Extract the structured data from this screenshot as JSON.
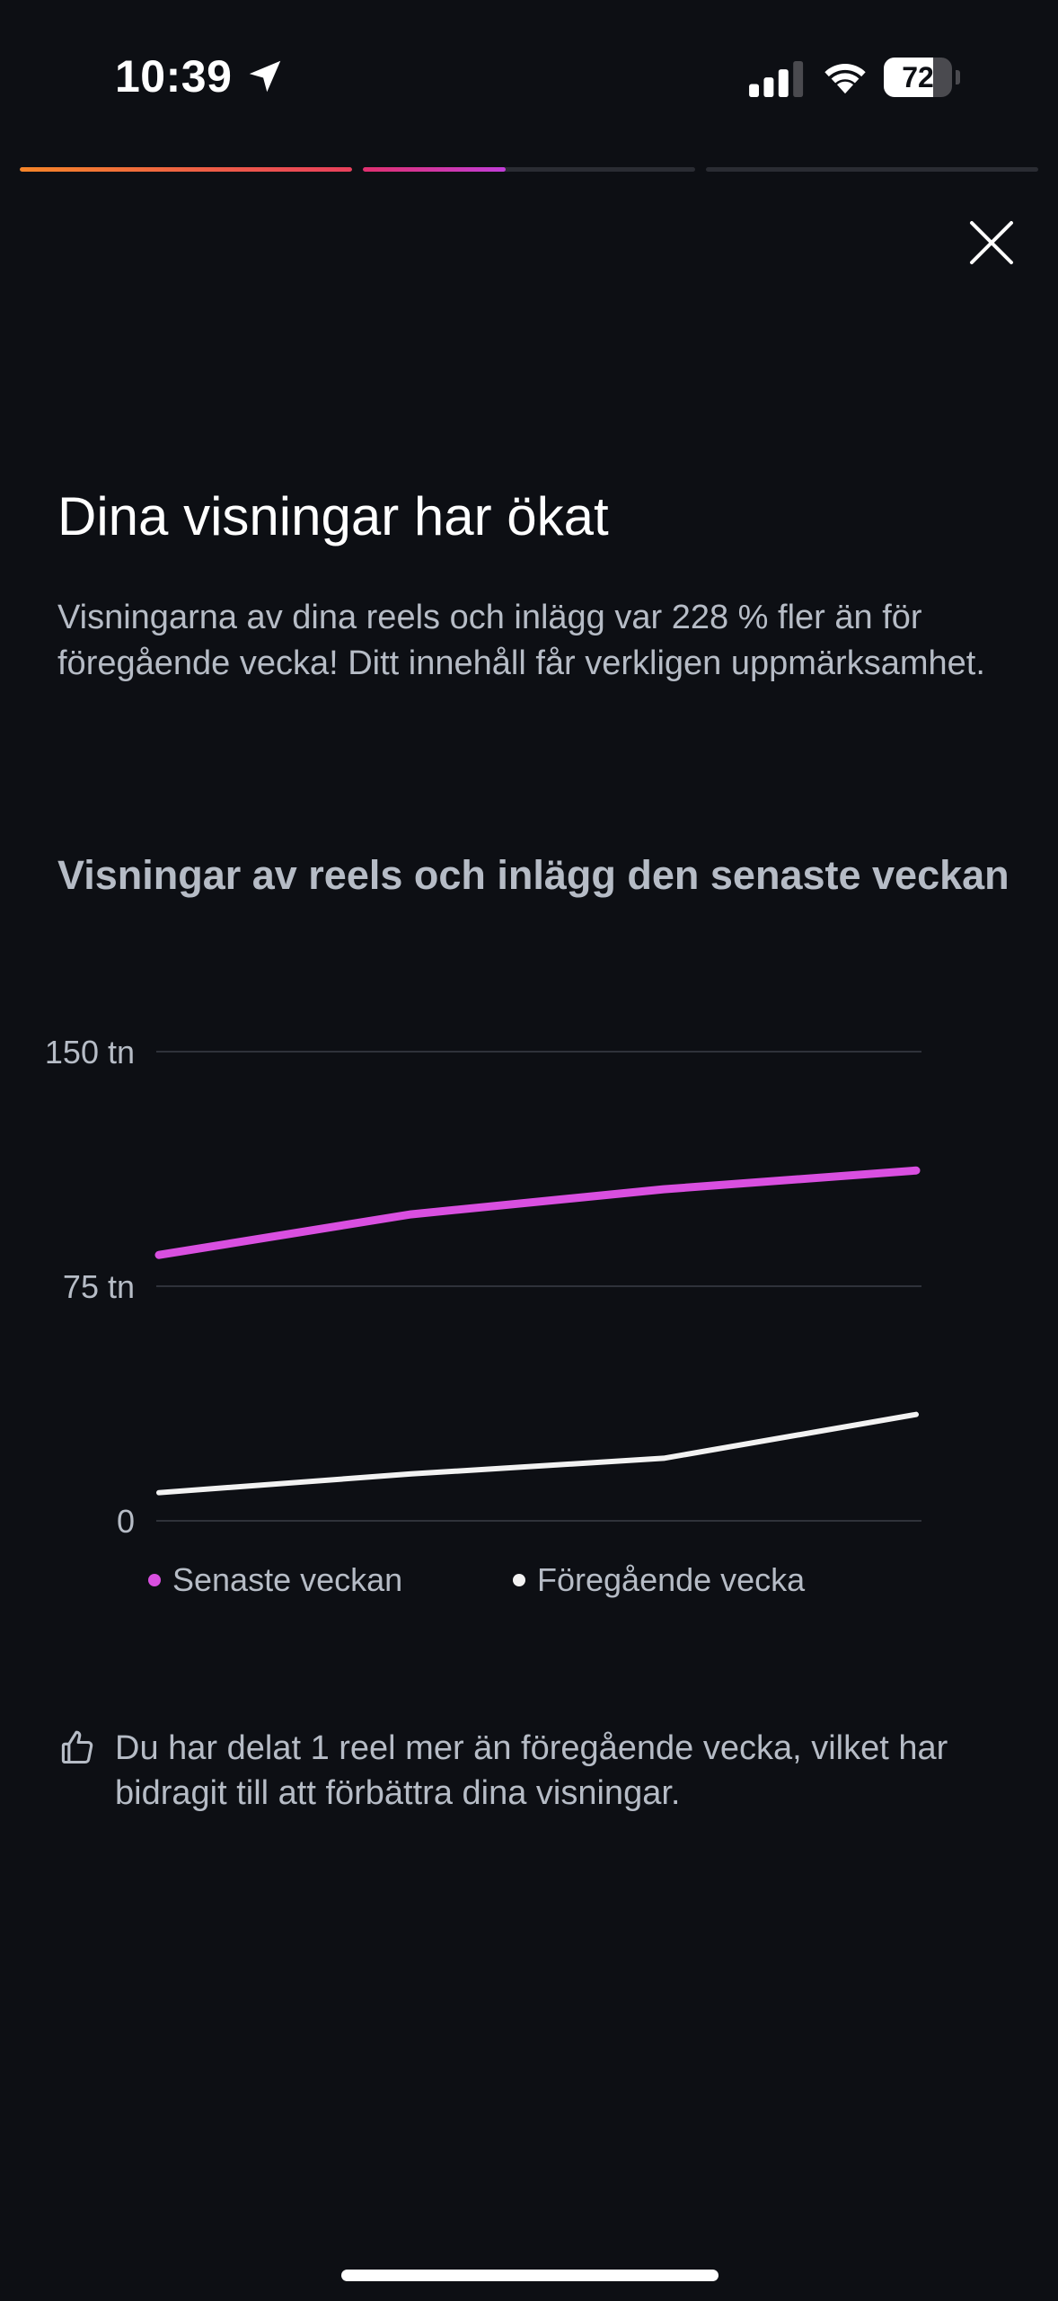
{
  "status_bar": {
    "time": "10:39",
    "battery_level": "72",
    "location_icon": "location-arrow-icon",
    "signal_icon": "cellular-signal-icon",
    "wifi_icon": "wifi-icon",
    "battery_icon": "battery-icon"
  },
  "story_progress": {
    "segments": [
      {
        "fill": 1.0
      },
      {
        "fill": 0.43
      },
      {
        "fill": 0.0
      }
    ]
  },
  "header": {
    "close_icon": "close-icon"
  },
  "content": {
    "title": "Dina visningar har ökat",
    "description": "Visningarna av dina reels och inlägg var 228 % fler än för föregående vecka! Ditt innehåll får verkligen uppmärksamhet.",
    "chart_title": "Visningar av reels och inlägg den senaste veckan"
  },
  "chart_data": {
    "type": "line",
    "title": "Visningar av reels och inlägg den senaste veckan",
    "xlabel": "",
    "ylabel": "",
    "x": [
      1,
      2,
      3,
      4
    ],
    "ylim": [
      0,
      150
    ],
    "y_ticks": [
      0,
      75,
      150
    ],
    "y_tick_labels": [
      "0",
      "75 tn",
      "150 tn"
    ],
    "grid": true,
    "legend_position": "bottom",
    "series": [
      {
        "name": "Senaste veckan",
        "color": "#d94fe0",
        "values": [
          85,
          98,
          106,
          112
        ]
      },
      {
        "name": "Föregående vecka",
        "color": "#f2f2f2",
        "values": [
          9,
          15,
          20,
          34
        ]
      }
    ]
  },
  "tip": {
    "icon": "thumbs-up-icon",
    "text": "Du har delat 1 reel mer än föregående vecka, vilket har bidragit till att förbättra dina visningar."
  }
}
